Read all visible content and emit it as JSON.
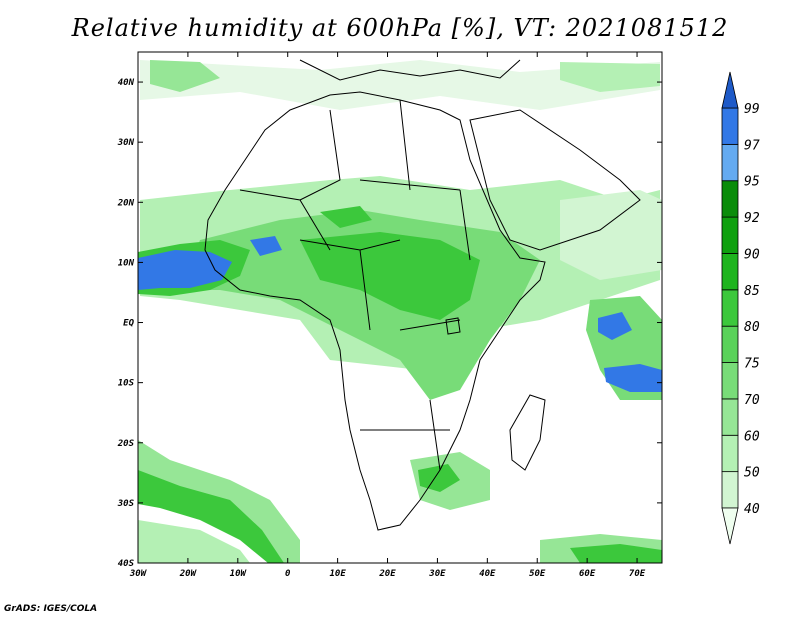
{
  "title": "Relative humidity at 600hPa [%], VT: 2021081512",
  "credit": "GrADS: IGES/COLA",
  "map": {
    "lon_range": [
      -30,
      75
    ],
    "lat_range": [
      -40,
      45
    ],
    "lon_ticks": [
      {
        "value": -30,
        "label": "30W"
      },
      {
        "value": -20,
        "label": "20W"
      },
      {
        "value": -10,
        "label": "10W"
      },
      {
        "value": 0,
        "label": "0"
      },
      {
        "value": 10,
        "label": "10E"
      },
      {
        "value": 20,
        "label": "20E"
      },
      {
        "value": 30,
        "label": "30E"
      },
      {
        "value": 40,
        "label": "40E"
      },
      {
        "value": 50,
        "label": "50E"
      },
      {
        "value": 60,
        "label": "60E"
      },
      {
        "value": 70,
        "label": "70E"
      }
    ],
    "lat_ticks": [
      {
        "value": 40,
        "label": "40N"
      },
      {
        "value": 30,
        "label": "30N"
      },
      {
        "value": 20,
        "label": "20N"
      },
      {
        "value": 10,
        "label": "10N"
      },
      {
        "value": 0,
        "label": "EQ"
      },
      {
        "value": -10,
        "label": "10S"
      },
      {
        "value": -20,
        "label": "20S"
      },
      {
        "value": -30,
        "label": "30S"
      },
      {
        "value": -40,
        "label": "40S"
      }
    ]
  },
  "colorbar": {
    "levels": [
      "40",
      "50",
      "60",
      "70",
      "75",
      "80",
      "85",
      "90",
      "92",
      "95",
      "97",
      "99"
    ],
    "colors": [
      "#f0fff0",
      "#d2f5d2",
      "#b4f0b4",
      "#96e696",
      "#78dc78",
      "#5ad25a",
      "#3cc83c",
      "#1eb41e",
      "#0fa00f",
      "#0a8c0a",
      "#64aaf0",
      "#3278e6",
      "#1e5ac8"
    ]
  },
  "colors": {
    "rh_70": "#96e696",
    "rh_75": "#78dc78",
    "rh_85": "#3cc83c",
    "rh_97": "#3278e6",
    "rh_40": "#e6f8e6",
    "coast": "#000000"
  }
}
